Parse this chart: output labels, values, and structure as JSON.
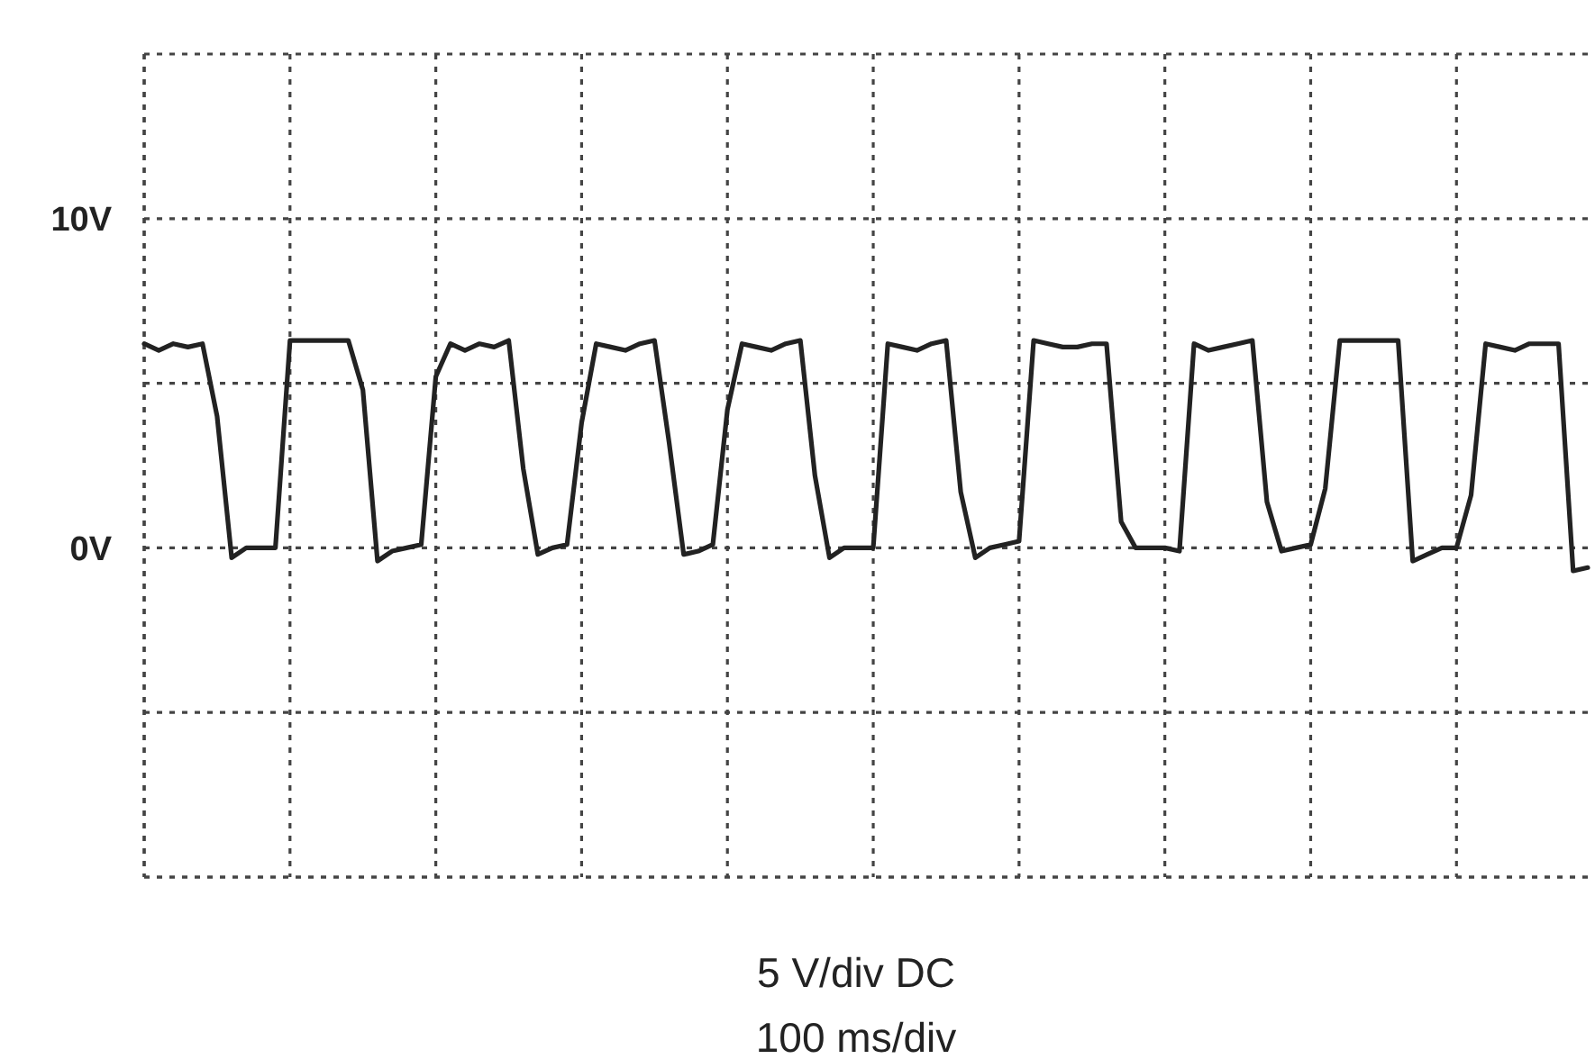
{
  "chart_data": {
    "type": "line",
    "categories": [
      null,
      null,
      null,
      null,
      null,
      null,
      null,
      null,
      null,
      null,
      null,
      null,
      null,
      null,
      null,
      null,
      null,
      null,
      null,
      null,
      null,
      null,
      null,
      null,
      null,
      null,
      null,
      null,
      null,
      null,
      null,
      null,
      null,
      null,
      null,
      null,
      null,
      null,
      null,
      null,
      null,
      null,
      null,
      null,
      null,
      null,
      null,
      null,
      null,
      null,
      null,
      null,
      null,
      null,
      null,
      null,
      null,
      null,
      null,
      null,
      null,
      null,
      null,
      null,
      null,
      null,
      null,
      null,
      null,
      null,
      null,
      null,
      null,
      null,
      null,
      null,
      null,
      null,
      null,
      null,
      null,
      null,
      null,
      null,
      null,
      null,
      null,
      null,
      null,
      null,
      null,
      null,
      null,
      null,
      null,
      null,
      null,
      null,
      null,
      null
    ],
    "series": [
      {
        "color": "#222222",
        "values": [
          6.2,
          6.0,
          6.2,
          6.1,
          6.2,
          4.0,
          -0.3,
          0,
          0,
          0,
          6.3,
          6.3,
          6.3,
          6.3,
          6.3,
          4.8,
          -0.4,
          -0.1,
          0,
          0.1,
          5.2,
          6.2,
          6.0,
          6.2,
          6.1,
          6.3,
          2.4,
          -0.2,
          0,
          0.1,
          3.8,
          6.2,
          6.1,
          6.0,
          6.2,
          6.3,
          3.2,
          -0.2,
          -0.1,
          0.1,
          4.2,
          6.2,
          6.1,
          6.0,
          6.2,
          6.3,
          2.2,
          -0.3,
          0,
          0,
          0,
          6.2,
          6.1,
          6.0,
          6.2,
          6.3,
          1.7,
          -0.3,
          0,
          0.1,
          0.2,
          6.3,
          6.2,
          6.1,
          6.1,
          6.2,
          6.2,
          0.8,
          0,
          0,
          0,
          -0.1,
          6.2,
          6.0,
          6.1,
          6.2,
          6.3,
          1.4,
          -0.1,
          0,
          0.1,
          1.8,
          6.3,
          6.3,
          6.3,
          6.3,
          6.3,
          -0.4,
          -0.2,
          0,
          0,
          1.6,
          6.2,
          6.1,
          6.0,
          6.2,
          6.2,
          6.2,
          -0.7,
          -0.6
        ]
      }
    ],
    "ylim": [
      -10,
      15
    ],
    "yticks": [
      {
        "value": -10,
        "label": null
      },
      {
        "value": -5,
        "label": null
      },
      {
        "value": 0,
        "label": "0V"
      },
      {
        "value": 5,
        "label": null
      },
      {
        "value": 10,
        "label": "10V"
      },
      {
        "value": 15,
        "label": null
      }
    ],
    "tick_labels": "y",
    "grid": true,
    "marker": "none",
    "line_style": "solid",
    "annotations": [
      "5 V/div DC",
      "100 ms/div"
    ]
  }
}
